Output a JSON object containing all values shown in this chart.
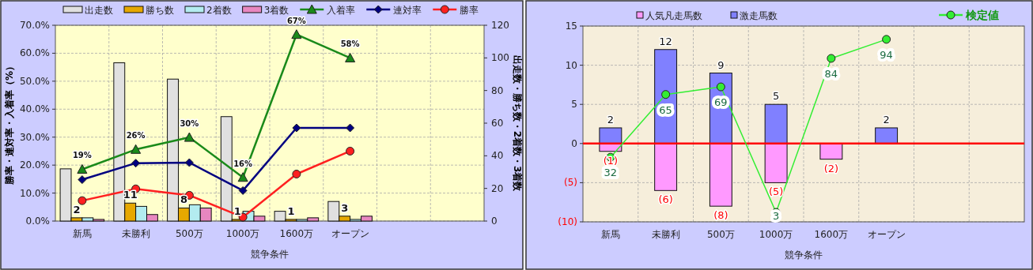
{
  "chart_data": [
    {
      "type": "bar",
      "categories": [
        "新馬",
        "未勝利",
        "500万",
        "1000万",
        "1600万",
        "オープン",
        null,
        null
      ],
      "xlabel": "競争条件",
      "ylabel": "勝率・連対率・入着率（%）",
      "y2label": "出走数・勝ち数・2着数・3着数",
      "ylim": [
        0,
        70
      ],
      "yticks": [
        {
          "value": 0,
          "label": "0.0%"
        },
        {
          "value": 10,
          "label": "10.0%"
        },
        {
          "value": 20,
          "label": "20.0%"
        },
        {
          "value": 30,
          "label": "30.0%"
        },
        {
          "value": 40,
          "label": "40.0%"
        },
        {
          "value": 50,
          "label": "50.0%"
        },
        {
          "value": 60,
          "label": "60.0%"
        },
        {
          "value": 70,
          "label": "70.0%"
        }
      ],
      "y2lim": [
        0,
        120
      ],
      "y2ticks": [
        0,
        20,
        40,
        60,
        80,
        100,
        120
      ],
      "grid": true,
      "legend": "top",
      "series": [
        {
          "name": "出走数",
          "color": "#e0e0e0",
          "axis": "y2",
          "values": [
            32,
            97,
            87,
            64,
            6,
            12,
            null,
            null
          ]
        },
        {
          "name": "勝ち数",
          "color": "#e6a800",
          "axis": "y2",
          "values": [
            2,
            11,
            8,
            1,
            1,
            3,
            null,
            null
          ],
          "value_labels": [
            "2",
            "11",
            "8",
            "1",
            "1",
            "3",
            null,
            null
          ]
        },
        {
          "name": "2着数",
          "color": "#b3ecf0",
          "axis": "y2",
          "values": [
            2,
            9,
            10,
            6,
            1,
            1,
            null,
            null
          ]
        },
        {
          "name": "3着数",
          "color": "#e887c0",
          "axis": "y2",
          "values": [
            1,
            4,
            8,
            3,
            2,
            3,
            null,
            null
          ]
        },
        {
          "name": "入着率",
          "type": "line",
          "marker": "triangle",
          "color": "#1a8a1a",
          "values": [
            18.5,
            25.6,
            29.9,
            15.6,
            66.7,
            58.3,
            null,
            null
          ],
          "value_labels": [
            "19%",
            "26%",
            "30%",
            "16%",
            "67%",
            "58%",
            null,
            null
          ]
        },
        {
          "name": "連対率",
          "type": "line",
          "marker": "diamond",
          "color": "#000080",
          "values": [
            14.8,
            20.7,
            20.9,
            10.9,
            33.3,
            33.3,
            null,
            null
          ]
        },
        {
          "name": "勝率",
          "type": "line",
          "marker": "circle",
          "color": "#ff2020",
          "values": [
            7.3,
            11.5,
            9.2,
            1.4,
            16.8,
            25.0,
            null,
            null
          ]
        }
      ]
    },
    {
      "type": "bar",
      "stacked": true,
      "categories": [
        "新馬",
        "未勝利",
        "500万",
        "1000万",
        "1600万",
        "オープン",
        null,
        null
      ],
      "xlabel": "競争条件",
      "ylim": [
        -10,
        15
      ],
      "yticks": [
        {
          "value": -10,
          "label": "(10)"
        },
        {
          "value": -5,
          "label": "(5)"
        },
        0,
        5,
        10,
        15
      ],
      "y2lim": [
        -2,
        101
      ],
      "grid": true,
      "legend": "top",
      "ref_lines": [
        {
          "axis": "y",
          "value": 0,
          "color": "#ff0000"
        }
      ],
      "series": [
        {
          "name": "人気凡走馬数",
          "color": "#ff99ff",
          "values": [
            -1,
            -6,
            -8,
            -5,
            -2,
            null,
            null,
            null
          ],
          "value_labels": [
            "(1)",
            "(6)",
            "(8)",
            "(5)",
            "(2)",
            null,
            null,
            null
          ]
        },
        {
          "name": "激走馬数",
          "color": "#8080ff",
          "values": [
            2,
            12,
            9,
            5,
            null,
            2,
            null,
            null
          ],
          "value_labels": [
            "2",
            "12",
            "9",
            "5",
            null,
            "2",
            null,
            null
          ]
        },
        {
          "name": "検定値",
          "type": "line",
          "axis": "y2",
          "marker": "circle",
          "color": "#33ee33",
          "values": [
            32,
            65,
            69,
            3,
            84,
            94,
            null,
            null
          ],
          "value_labels": [
            "32",
            "65",
            "69",
            "3",
            "84",
            "94",
            null,
            null
          ]
        }
      ]
    }
  ]
}
